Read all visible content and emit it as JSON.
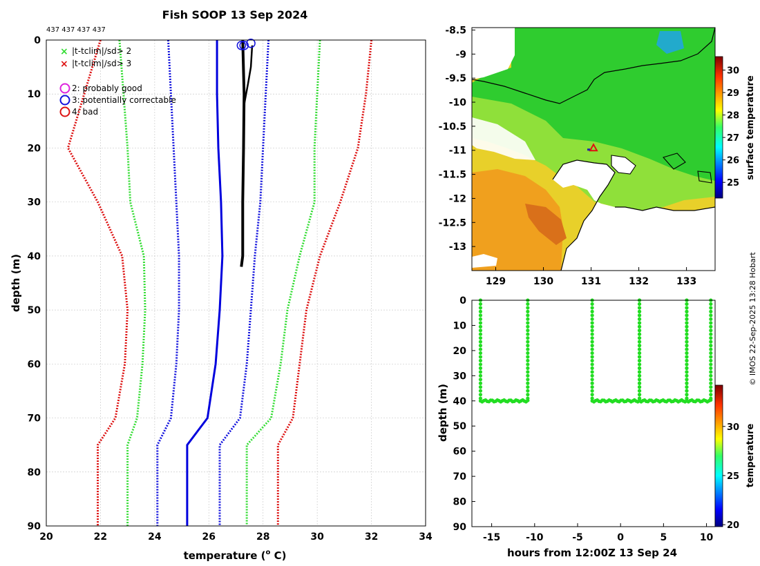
{
  "title": "Fish SOOP 13 Sep 2024",
  "profile_counts": "437 437 437 437",
  "credit": "© IMOS 22-Sep-2025 13:28 Hobart",
  "legend": {
    "crosses": [
      {
        "label": "|t-tclim|/sd> 2",
        "color": "#33dd33"
      },
      {
        "label": "|t-tclim|/sd> 3",
        "color": "#dd1111"
      }
    ],
    "circles": [
      {
        "label": "2: probably good",
        "color": "#dd22dd"
      },
      {
        "label": "3: potentially correctable",
        "color": "#1111dd"
      },
      {
        "label": "4: bad",
        "color": "#dd1111"
      }
    ]
  },
  "chart_data": [
    {
      "id": "profile",
      "type": "line",
      "title": "Fish SOOP 13 Sep 2024",
      "xlabel": "temperature (",
      "xlabel_sup": "o",
      "xlabel_end": " C)",
      "ylabel": "depth (m)",
      "xlim": [
        20,
        34
      ],
      "ylim": [
        0,
        90
      ],
      "y_inverted": true,
      "xticks": [
        20,
        22,
        24,
        26,
        28,
        30,
        32,
        34
      ],
      "yticks": [
        0,
        10,
        20,
        30,
        40,
        50,
        60,
        70,
        80,
        90
      ],
      "grid": true,
      "series": [
        {
          "name": "climatology mean",
          "style": "solid",
          "color": "#0000dd",
          "width": 3,
          "points": [
            [
              26.3,
              0
            ],
            [
              26.3,
              10
            ],
            [
              26.35,
              20
            ],
            [
              26.45,
              30
            ],
            [
              26.5,
              40
            ],
            [
              26.4,
              50
            ],
            [
              26.25,
              60
            ],
            [
              25.95,
              70
            ],
            [
              25.2,
              75
            ],
            [
              25.2,
              90
            ]
          ]
        },
        {
          "name": "mean - sd",
          "style": "dotted",
          "color": "#1111dd",
          "width": 3,
          "points": [
            [
              24.5,
              0
            ],
            [
              24.6,
              10
            ],
            [
              24.7,
              20
            ],
            [
              24.8,
              30
            ],
            [
              24.9,
              40
            ],
            [
              24.9,
              50
            ],
            [
              24.8,
              60
            ],
            [
              24.6,
              70
            ],
            [
              24.1,
              75
            ],
            [
              24.1,
              90
            ]
          ]
        },
        {
          "name": "mean + sd",
          "style": "dotted",
          "color": "#1111dd",
          "width": 3,
          "points": [
            [
              28.2,
              0
            ],
            [
              28.1,
              10
            ],
            [
              28.0,
              20
            ],
            [
              27.9,
              30
            ],
            [
              27.7,
              40
            ],
            [
              27.55,
              50
            ],
            [
              27.4,
              60
            ],
            [
              27.15,
              70
            ],
            [
              26.4,
              75
            ],
            [
              26.4,
              90
            ]
          ]
        },
        {
          "name": "mean - 2sd",
          "style": "dotted",
          "color": "#33dd33",
          "width": 3,
          "points": [
            [
              22.7,
              0
            ],
            [
              22.85,
              10
            ],
            [
              23.0,
              20
            ],
            [
              23.1,
              30
            ],
            [
              23.6,
              40
            ],
            [
              23.65,
              50
            ],
            [
              23.55,
              60
            ],
            [
              23.35,
              70
            ],
            [
              23.0,
              75
            ],
            [
              23.0,
              90
            ]
          ]
        },
        {
          "name": "mean + 2sd",
          "style": "dotted",
          "color": "#33dd33",
          "width": 3,
          "points": [
            [
              30.1,
              0
            ],
            [
              30.0,
              10
            ],
            [
              29.9,
              20
            ],
            [
              29.9,
              30
            ],
            [
              29.35,
              40
            ],
            [
              28.9,
              50
            ],
            [
              28.65,
              60
            ],
            [
              28.3,
              70
            ],
            [
              27.4,
              75
            ],
            [
              27.4,
              90
            ]
          ]
        },
        {
          "name": "mean - 3sd",
          "style": "dotted",
          "color": "#dd1111",
          "width": 3,
          "points": [
            [
              22.0,
              0
            ],
            [
              21.4,
              10
            ],
            [
              20.8,
              20
            ],
            [
              21.9,
              30
            ],
            [
              22.8,
              40
            ],
            [
              23.0,
              50
            ],
            [
              22.9,
              60
            ],
            [
              22.55,
              70
            ],
            [
              21.9,
              75
            ],
            [
              21.9,
              90
            ]
          ]
        },
        {
          "name": "mean + 3sd",
          "style": "dotted",
          "color": "#dd1111",
          "width": 3,
          "points": [
            [
              32.0,
              0
            ],
            [
              31.8,
              10
            ],
            [
              31.5,
              20
            ],
            [
              30.85,
              30
            ],
            [
              30.1,
              40
            ],
            [
              29.6,
              50
            ],
            [
              29.35,
              60
            ],
            [
              29.1,
              70
            ],
            [
              28.55,
              75
            ],
            [
              28.55,
              90
            ]
          ]
        },
        {
          "name": "observed profiles",
          "style": "solid",
          "color": "#000000",
          "width": 4,
          "points": [
            [
              27.25,
              0
            ],
            [
              27.3,
              10
            ],
            [
              27.28,
              20
            ],
            [
              27.25,
              30
            ],
            [
              27.25,
              40
            ],
            [
              27.2,
              42
            ]
          ]
        },
        {
          "name": "observed profile 2",
          "style": "solid",
          "color": "#000000",
          "width": 2.5,
          "points": [
            [
              27.6,
              1
            ],
            [
              27.55,
              5
            ],
            [
              27.45,
              8
            ],
            [
              27.3,
              12
            ]
          ]
        }
      ],
      "flag_circles": [
        {
          "x": 27.2,
          "y": 1,
          "color": "#1111dd"
        },
        {
          "x": 27.3,
          "y": 1,
          "color": "#1111dd"
        },
        {
          "x": 27.55,
          "y": 0.6,
          "color": "#1111dd"
        }
      ]
    },
    {
      "id": "map",
      "type": "heatmap",
      "xlim": [
        128.5,
        133.6
      ],
      "ylim": [
        -13.5,
        -8.45
      ],
      "xticks": [
        129,
        130,
        131,
        132,
        133
      ],
      "yticks": [
        -8.5,
        -9,
        -9.5,
        -10,
        -10.5,
        -11,
        -11.5,
        -12,
        -12.5,
        -13
      ],
      "marker": {
        "lon": 131.05,
        "lat": -10.95,
        "color": "#dd1111"
      },
      "colorbar": {
        "label": "surface temperature",
        "min": 24.3,
        "max": 30.6,
        "ticks": [
          25,
          26,
          27,
          28,
          29,
          30
        ]
      }
    },
    {
      "id": "timeseries",
      "type": "scatter",
      "xlabel": "hours from 12:00Z 13 Sep 24",
      "ylabel": "depth (m)",
      "xlim": [
        -17.3,
        11.0
      ],
      "ylim": [
        0,
        90
      ],
      "y_inverted": true,
      "xticks": [
        -15,
        -10,
        -5,
        0,
        5,
        10
      ],
      "yticks": [
        0,
        10,
        20,
        30,
        40,
        50,
        60,
        70,
        80,
        90
      ],
      "point_color": "#22dd22",
      "casts": [
        {
          "start": -16.3,
          "end": -10.8
        },
        {
          "start": -3.3,
          "end": 2.2
        },
        {
          "start": 2.2,
          "end": 7.7
        },
        {
          "start": 7.7,
          "end": 10.5
        }
      ],
      "bottom_depth": 40,
      "colorbar": {
        "label": "temperature",
        "min": 19.8,
        "max": 34.2,
        "ticks": [
          20,
          25,
          30
        ]
      }
    }
  ]
}
